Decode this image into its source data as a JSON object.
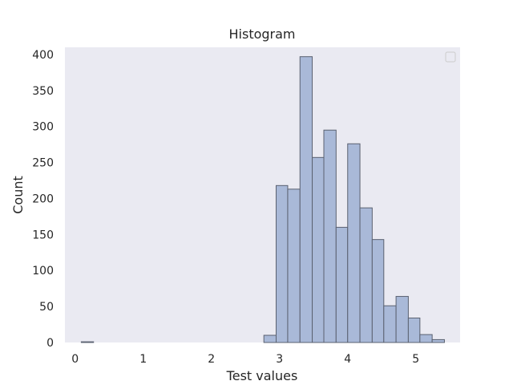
{
  "chart_data": {
    "type": "bar",
    "subtype": "histogram",
    "title": "Histogram",
    "xlabel": "Test values",
    "ylabel": "Count",
    "xlim": [
      -0.15,
      5.65
    ],
    "ylim": [
      0,
      410
    ],
    "xticks": [
      0,
      1,
      2,
      3,
      4,
      5
    ],
    "yticks": [
      0,
      50,
      100,
      150,
      200,
      250,
      300,
      350,
      400
    ],
    "grid": false,
    "legend": "top-right, empty",
    "colors": {
      "plot_background": "#eaeaf2",
      "bar_fill": "#a9b9d8",
      "bar_edge": "#5a6170"
    },
    "bins": [
      {
        "x0": 0.09,
        "x1": 0.27,
        "count": 1
      },
      {
        "x0": 2.77,
        "x1": 2.95,
        "count": 10
      },
      {
        "x0": 2.95,
        "x1": 3.12,
        "count": 218
      },
      {
        "x0": 3.12,
        "x1": 3.3,
        "count": 213
      },
      {
        "x0": 3.3,
        "x1": 3.48,
        "count": 397
      },
      {
        "x0": 3.48,
        "x1": 3.65,
        "count": 257
      },
      {
        "x0": 3.65,
        "x1": 3.83,
        "count": 295
      },
      {
        "x0": 3.83,
        "x1": 4.0,
        "count": 160
      },
      {
        "x0": 4.0,
        "x1": 4.18,
        "count": 276
      },
      {
        "x0": 4.18,
        "x1": 4.36,
        "count": 187
      },
      {
        "x0": 4.36,
        "x1": 4.53,
        "count": 143
      },
      {
        "x0": 4.53,
        "x1": 4.71,
        "count": 51
      },
      {
        "x0": 4.71,
        "x1": 4.89,
        "count": 64
      },
      {
        "x0": 4.89,
        "x1": 5.06,
        "count": 34
      },
      {
        "x0": 5.06,
        "x1": 5.24,
        "count": 11
      },
      {
        "x0": 5.24,
        "x1": 5.42,
        "count": 4
      }
    ]
  }
}
